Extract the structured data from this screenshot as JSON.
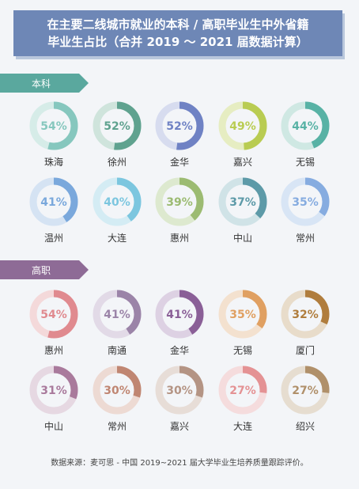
{
  "title": {
    "line1": "在主要二线城市就业的本科 / 高职毕业生中外省籍",
    "line2": "毕业生占比（合并 2019 ～ 2021 届数据计算）"
  },
  "source": "数据来源：麦可思 - 中国 2019~2021 届大学毕业生培养质量跟踪评价。",
  "colors": {
    "undergrad_tab": "#5aa89e",
    "vocational_tab": "#8e6b96"
  },
  "chart_data": [
    {
      "type": "pie",
      "group": "本科",
      "items": [
        {
          "city": "珠海",
          "value": 54,
          "label": "54%",
          "color": "#86c7be",
          "track": "#d6ece8"
        },
        {
          "city": "徐州",
          "value": 52,
          "label": "52%",
          "color": "#5fa28f",
          "track": "#cfe4dc"
        },
        {
          "city": "金华",
          "value": 52,
          "label": "52%",
          "color": "#6f82c4",
          "track": "#d7dcef"
        },
        {
          "city": "嘉兴",
          "value": 49,
          "label": "49%",
          "color": "#b9cc52",
          "track": "#e6edc2"
        },
        {
          "city": "无锡",
          "value": 44,
          "label": "44%",
          "color": "#58b2a5",
          "track": "#cfe8e3"
        },
        {
          "city": "温州",
          "value": 41,
          "label": "41%",
          "color": "#7aa8dc",
          "track": "#d5e3f3"
        },
        {
          "city": "大连",
          "value": 40,
          "label": "40%",
          "color": "#7cc6df",
          "track": "#d4ecf4"
        },
        {
          "city": "惠州",
          "value": 39,
          "label": "39%",
          "color": "#9cbb72",
          "track": "#dde9cf"
        },
        {
          "city": "中山",
          "value": 37,
          "label": "37%",
          "color": "#5d9aa8",
          "track": "#d0e3e7"
        },
        {
          "city": "常州",
          "value": 35,
          "label": "35%",
          "color": "#86ace0",
          "track": "#d8e5f5"
        }
      ]
    },
    {
      "type": "pie",
      "group": "高职",
      "items": [
        {
          "city": "惠州",
          "value": 54,
          "label": "54%",
          "color": "#e08a8f",
          "track": "#f4d9da"
        },
        {
          "city": "南通",
          "value": 41,
          "label": "41%",
          "color": "#9b84a8",
          "track": "#e2dae7"
        },
        {
          "city": "金华",
          "value": 41,
          "label": "41%",
          "color": "#8a5f97",
          "track": "#ddd1e3"
        },
        {
          "city": "无锡",
          "value": 35,
          "label": "35%",
          "color": "#e0a062",
          "track": "#f3e1cf"
        },
        {
          "city": "厦门",
          "value": 32,
          "label": "32%",
          "color": "#b07d3d",
          "track": "#e8dcca"
        },
        {
          "city": "中山",
          "value": 31,
          "label": "31%",
          "color": "#a97a9c",
          "track": "#e6d8e2"
        },
        {
          "city": "常州",
          "value": 30,
          "label": "30%",
          "color": "#c08672",
          "track": "#eddad3"
        },
        {
          "city": "嘉兴",
          "value": 30,
          "label": "30%",
          "color": "#b49484",
          "track": "#e7ddd7"
        },
        {
          "city": "大连",
          "value": 27,
          "label": "27%",
          "color": "#e49294",
          "track": "#f5dcdd"
        },
        {
          "city": "绍兴",
          "value": 27,
          "label": "27%",
          "color": "#b0906a",
          "track": "#e6ddd0"
        }
      ]
    }
  ]
}
